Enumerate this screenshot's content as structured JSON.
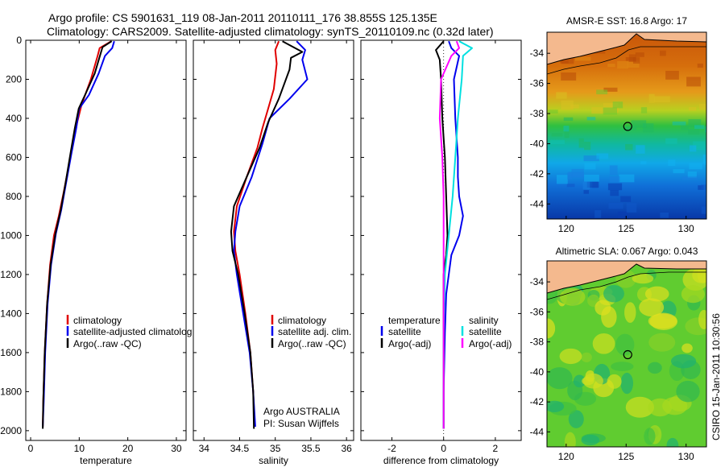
{
  "header": {
    "title_line1": "Argo profile: CS 5901631_119 08-Jan-2011 20110111_176 38.855S 125.135E",
    "title_line2": "Climatology: CARS2009. Satellite-adjusted climatology: synTS_20110109.nc (0.32d later)"
  },
  "side_label": "CSIRO 15-Jan-2011 10:30:56",
  "colors": {
    "climatology": "#e00000",
    "satellite": "#0000ee",
    "argo": "#000000",
    "sal_satellite": "#00e0e0",
    "sal_argo": "#ff00ff",
    "land": "#f4b98e"
  },
  "chart_data": [
    {
      "type": "line",
      "xlabel": "temperature",
      "ylim": [
        2050,
        0
      ],
      "xlim": [
        -1,
        32
      ],
      "yticks": [
        0,
        200,
        400,
        600,
        800,
        1000,
        1200,
        1400,
        1600,
        1800,
        2000
      ],
      "xticks": [
        0,
        10,
        20,
        30
      ],
      "legend": [
        "climatology",
        "satellite-adjusted climatolog",
        "Argo(..raw -QC)"
      ],
      "series": [
        {
          "name": "climatology",
          "color": "#e00000",
          "x": [
            16.6,
            14.2,
            13.8,
            12.4,
            10.5,
            9.6,
            8.8,
            7.8,
            6.8,
            5.8,
            4.8,
            4.0,
            3.4,
            2.9,
            2.6,
            2.5
          ],
          "y": [
            5,
            40,
            80,
            200,
            330,
            420,
            520,
            650,
            780,
            900,
            1000,
            1150,
            1350,
            1600,
            1850,
            1980
          ]
        },
        {
          "name": "satellite-adjusted climatolog",
          "color": "#0000ee",
          "x": [
            17.2,
            16.8,
            15.3,
            14.0,
            12.0,
            10.0,
            9.4,
            8.4,
            7.3,
            6.3,
            5.2,
            4.2,
            3.5,
            3.0,
            2.7,
            2.5
          ],
          "y": [
            5,
            40,
            80,
            170,
            280,
            350,
            450,
            580,
            730,
            870,
            990,
            1150,
            1350,
            1600,
            1850,
            1980
          ]
        },
        {
          "name": "Argo(..raw -QC)",
          "color": "#000000",
          "x": [
            16.7,
            14.8,
            14.5,
            13.2,
            11.2,
            9.9,
            9.1,
            8.2,
            7.2,
            6.2,
            5.1,
            4.1,
            3.4,
            2.9,
            2.6,
            2.5
          ],
          "y": [
            5,
            35,
            60,
            170,
            280,
            350,
            450,
            580,
            730,
            870,
            990,
            1150,
            1350,
            1600,
            1850,
            1990
          ]
        }
      ]
    },
    {
      "type": "line",
      "xlabel": "salinity",
      "ylim": [
        2050,
        0
      ],
      "xlim": [
        33.85,
        36.1
      ],
      "xticks": [
        34,
        34.5,
        35,
        35.5,
        36
      ],
      "legend": [
        "climatology",
        "satellite adj. clim.",
        "Argo(..raw -QC)"
      ],
      "annotation": [
        "Argo AUSTRALIA",
        "PI: Susan Wijffels"
      ],
      "series": [
        {
          "name": "climatology",
          "color": "#e00000",
          "x": [
            35.05,
            35.0,
            35.02,
            34.98,
            34.9,
            34.82,
            34.75,
            34.6,
            34.46,
            34.42,
            34.44,
            34.5,
            34.58,
            34.65,
            34.69,
            34.71
          ],
          "y": [
            5,
            50,
            120,
            250,
            350,
            450,
            550,
            700,
            850,
            980,
            1080,
            1200,
            1400,
            1600,
            1800,
            1980
          ]
        },
        {
          "name": "satellite adj. clim.",
          "color": "#0000ee",
          "x": [
            35.3,
            35.42,
            35.38,
            35.45,
            35.2,
            34.92,
            34.82,
            34.67,
            34.5,
            34.44,
            34.42,
            34.46,
            34.55,
            34.64,
            34.69,
            34.72
          ],
          "y": [
            5,
            50,
            100,
            200,
            300,
            400,
            530,
            700,
            850,
            980,
            1080,
            1200,
            1400,
            1600,
            1800,
            1980
          ]
        },
        {
          "name": "Argo(..raw -QC)",
          "color": "#000000",
          "x": [
            35.1,
            35.38,
            35.22,
            35.2,
            35.05,
            34.9,
            34.78,
            34.6,
            34.42,
            34.38,
            34.4,
            34.48,
            34.57,
            34.65,
            34.69,
            34.7
          ],
          "y": [
            5,
            60,
            90,
            150,
            300,
            420,
            550,
            700,
            850,
            980,
            1080,
            1200,
            1400,
            1600,
            1800,
            1990
          ]
        }
      ]
    },
    {
      "type": "line",
      "xlabel": "difference from climatology",
      "ylim": [
        2050,
        0
      ],
      "xlim": [
        -3.2,
        3
      ],
      "xticks": [
        -2,
        0,
        2
      ],
      "legend_temperature": [
        "temperature",
        "satellite",
        "Argo(-adj)"
      ],
      "legend_salinity": [
        "salinity",
        "satellite",
        "Argo(-adj)"
      ],
      "series": [
        {
          "name": "satellite",
          "color": "#0000ee",
          "x": [
            0.2,
            0.3,
            0.6,
            0.4,
            0.45,
            0.55,
            0.55,
            0.6,
            0.75,
            0.6,
            0.3,
            0.1,
            0.05,
            0.0,
            0.0
          ],
          "y": [
            5,
            40,
            80,
            200,
            400,
            600,
            700,
            800,
            900,
            1000,
            1100,
            1300,
            1500,
            1800,
            1990
          ]
        },
        {
          "name": "Argo(-adj)",
          "color": "#000000",
          "x": [
            0.0,
            -0.3,
            -0.15,
            -0.1,
            -0.05,
            0.05,
            0.1,
            0.15,
            0.1,
            0.0,
            0.0,
            0.0,
            0.0
          ],
          "y": [
            5,
            50,
            100,
            200,
            400,
            600,
            800,
            1000,
            1100,
            1200,
            1500,
            1800,
            1990
          ]
        },
        {
          "name": "satellite",
          "color": "#00e0e0",
          "x": [
            0.6,
            1.1,
            0.75,
            0.7,
            0.55,
            0.45,
            0.35,
            0.2,
            0.05,
            0.0,
            0.0
          ],
          "y": [
            5,
            40,
            80,
            200,
            400,
            600,
            800,
            1000,
            1200,
            1500,
            1990
          ]
        },
        {
          "name": "Argo(-adj)",
          "color": "#ff00ff",
          "x": [
            0.5,
            0.6,
            0.3,
            -0.1,
            -0.15,
            -0.05,
            0.0,
            0.0,
            0.0
          ],
          "y": [
            5,
            40,
            80,
            200,
            400,
            600,
            800,
            1200,
            1990
          ]
        }
      ]
    },
    {
      "type": "heatmap",
      "title": "AMSR-E SST: 16.8 Argo: 17",
      "xticks": [
        120,
        125,
        130
      ],
      "yticks": [
        -34,
        -36,
        -38,
        -40,
        -42,
        -44
      ],
      "xlim": [
        118.4,
        131.7
      ],
      "ylim": [
        -45,
        -32.6
      ],
      "marker": {
        "lon": 125.135,
        "lat": -38.855
      },
      "colormap": "jet"
    },
    {
      "type": "heatmap",
      "title": "Altimetric SLA: 0.067 Argo: 0.043",
      "xticks": [
        120,
        125,
        130
      ],
      "yticks": [
        -34,
        -36,
        -38,
        -40,
        -42,
        -44
      ],
      "xlim": [
        118.4,
        131.7
      ],
      "ylim": [
        -45,
        -32.6
      ],
      "marker": {
        "lon": 125.135,
        "lat": -38.855
      },
      "colormap": "jet"
    }
  ]
}
